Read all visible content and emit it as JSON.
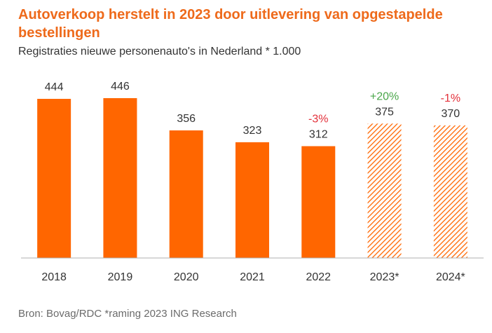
{
  "title": "Autoverkoop herstelt in 2023 door uitlevering van opgestapelde bestellingen",
  "subtitle": "Registraties nieuwe personenauto's in Nederland * 1.000",
  "source": "Bron: Bovag/RDC *raming 2023 ING Research",
  "colors": {
    "bar": "#ff6600",
    "forecast_hatch": "#ff6600",
    "negative": "#e3303a",
    "positive": "#4aa64a",
    "axis": "#b0b0b0",
    "text": "#333333"
  },
  "chart_data": {
    "type": "bar",
    "categories": [
      "2018",
      "2019",
      "2020",
      "2021",
      "2022",
      "2023*",
      "2024*"
    ],
    "values": [
      444,
      446,
      356,
      323,
      312,
      375,
      370
    ],
    "value_labels": [
      "444",
      "446",
      "356",
      "323",
      "312",
      "375",
      "370"
    ],
    "forecast": [
      false,
      false,
      false,
      false,
      false,
      true,
      true
    ],
    "change_labels": [
      "",
      "",
      "",
      "",
      "-3%",
      "+20%",
      "-1%"
    ],
    "change_sign": [
      "",
      "",
      "",
      "",
      "negative",
      "positive",
      "negative"
    ],
    "ylim": [
      0,
      500
    ],
    "grid": false,
    "legend": "none"
  }
}
